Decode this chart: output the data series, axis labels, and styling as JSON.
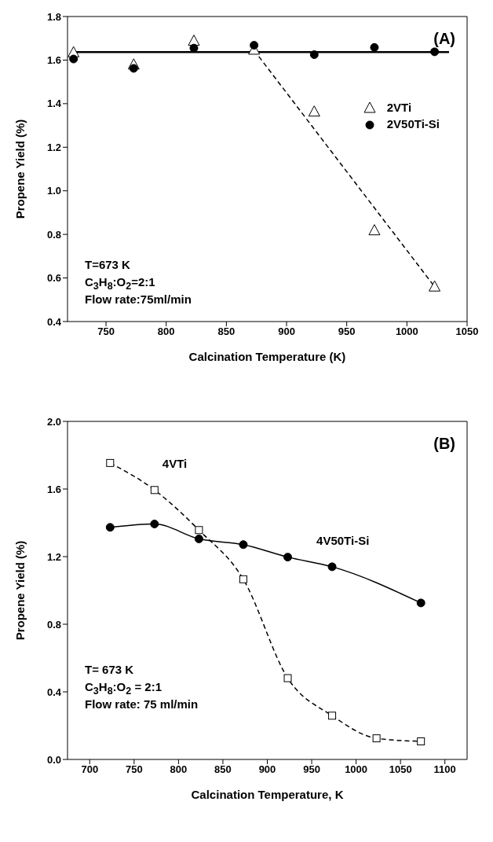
{
  "chart_data": [
    {
      "type": "scatter",
      "xlabel": "Calcination Temperature (K)",
      "ylabel": "Propene Yield (%)",
      "xlim": [
        718,
        1050
      ],
      "xticks": [
        750,
        800,
        850,
        900,
        950,
        1000,
        1050
      ],
      "ylim": [
        0.4,
        1.8
      ],
      "yticks": [
        0.4,
        0.6,
        0.8,
        {
          "value": 1,
          "label": "1.0"
        },
        1.2,
        1.4,
        1.6,
        1.8
      ],
      "x": [
        723,
        773,
        823,
        873,
        923,
        973,
        1023
      ],
      "series": [
        {
          "name": "2VTi",
          "marker": "triangle",
          "color": "#000000",
          "values": [
            1.633,
            1.577,
            1.686,
            1.645,
            1.361,
            0.816,
            0.558
          ]
        },
        {
          "name": "2V50Ti-Si",
          "marker": "circle",
          "color": "#000000",
          "values": [
            1.605,
            1.562,
            1.655,
            1.668,
            1.625,
            1.658,
            1.638
          ]
        },
        {
          "type": "line",
          "line_style": "solid",
          "color": "#000000",
          "x": [
            723,
            1035
          ],
          "values": [
            1.637,
            1.637
          ]
        },
        {
          "type": "line",
          "line_style": "dashed",
          "color": "#000000",
          "x": [
            873,
            1023
          ],
          "values": [
            1.645,
            0.56
          ]
        }
      ],
      "legend": "top right",
      "annotations": [
        "(A)",
        "T=673 K",
        "C$_{3}$H$_{8}$:O$_{2}$=2:1",
        "Flow rate:75ml/min"
      ]
    },
    {
      "type": "line",
      "xlabel": "Calcination Temperature, K",
      "ylabel": "Propene Yield (%)",
      "xlim": [
        675,
        1125
      ],
      "xticks": [
        700,
        750,
        800,
        850,
        900,
        950,
        1000,
        1050,
        1100
      ],
      "ylim": [
        0,
        2.0
      ],
      "yticks": [
        {
          "value": 0,
          "label": "0.0"
        },
        0.4,
        0.8,
        1.2,
        1.6,
        {
          "value": 2,
          "label": "2.0"
        }
      ],
      "series": [
        {
          "name": "4VTi",
          "marker": "square",
          "line_style": "dashed",
          "color": "#000000",
          "x": [
            723,
            773,
            823,
            873,
            923,
            973,
            1023,
            1073
          ],
          "values": [
            1.754,
            1.594,
            1.357,
            1.066,
            0.481,
            0.259,
            0.125,
            0.107
          ]
        },
        {
          "name": "4V50Ti-Si",
          "marker": "circle",
          "line_style": "solid",
          "color": "#000000",
          "x": [
            723,
            773,
            823,
            873,
            923,
            973,
            1073
          ],
          "values": [
            1.373,
            1.393,
            1.305,
            1.271,
            1.197,
            1.14,
            0.926
          ]
        }
      ],
      "legend": false,
      "annotations": [
        "(B)",
        "T= 673 K",
        "C$_{3}$H$_{8}$:O$_{2}$ = 2:1",
        "Flow rate: 75 ml/min"
      ]
    }
  ]
}
